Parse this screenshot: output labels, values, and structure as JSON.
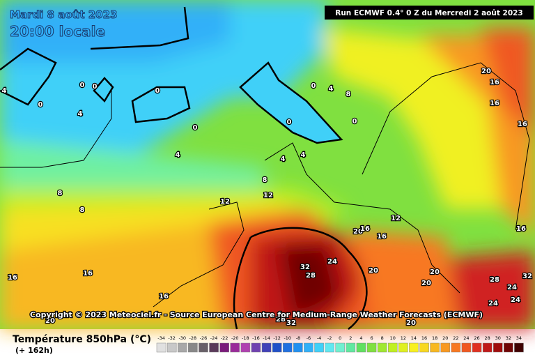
{
  "header": {
    "date": "Mardi 8 août 2023",
    "time": "20:00 locale",
    "run": "Run ECMWF 0.4° 0 Z du Mercredi 2 août 2023"
  },
  "map": {
    "copyright": "Copyright © 2023 Meteociel.fr - Source European Centre for Medium-Range Weather Forecasts (ECMWF)",
    "contour_labels": [
      0,
      0,
      0,
      0,
      4,
      4,
      4,
      0,
      0,
      0,
      4,
      8,
      0,
      4,
      4,
      8,
      8,
      8,
      12,
      12,
      16,
      16,
      16,
      16,
      20,
      16,
      16,
      12,
      20,
      20,
      20,
      20,
      24,
      28,
      32,
      32,
      28,
      24,
      16,
      16,
      20,
      20,
      24,
      24,
      28,
      32,
      16
    ],
    "scale": {
      "title": "Température 850hPa (°C)",
      "lead": "(+ 162h)",
      "ticks": [
        -34,
        -32,
        -30,
        -28,
        -26,
        -24,
        -22,
        -20,
        -18,
        -16,
        -14,
        -12,
        -10,
        -8,
        -6,
        -4,
        -2,
        0,
        2,
        4,
        6,
        8,
        10,
        12,
        14,
        16,
        18,
        20,
        22,
        24,
        26,
        28,
        30,
        32,
        34
      ],
      "colors": [
        "#e0e0e0",
        "#c8c8c8",
        "#a8a8a8",
        "#888888",
        "#686068",
        "#5a3a5a",
        "#7a1a7a",
        "#9a2a9a",
        "#b040b0",
        "#7040b0",
        "#4040b8",
        "#2050c8",
        "#2070e0",
        "#2090f0",
        "#30b0f8",
        "#40d0f8",
        "#60e8f0",
        "#70f0d0",
        "#60e8a0",
        "#60e060",
        "#80e040",
        "#a0e830",
        "#c0f020",
        "#e0f020",
        "#f8f020",
        "#f8d820",
        "#f8b820",
        "#f89820",
        "#f87820",
        "#f05820",
        "#e03020",
        "#c01818",
        "#a00c0c",
        "#700404",
        "#400000"
      ]
    }
  }
}
